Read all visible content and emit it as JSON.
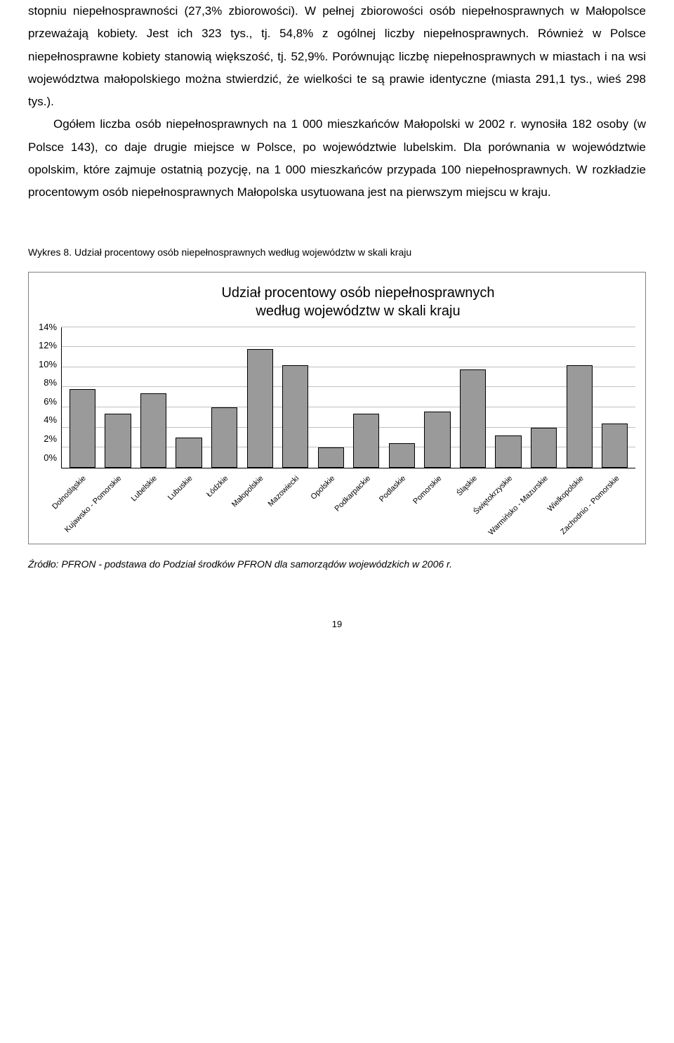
{
  "body_text": "stopniu niepełnosprawności (27,3% zbiorowości). W pełnej zbiorowości osób niepełnosprawnych w Małopolsce przeważają kobiety. Jest ich 323 tys., tj. 54,8% z ogólnej liczby niepełnosprawnych. Również w Polsce niepełnosprawne kobiety stanowią większość, tj. 52,9%. Porównując liczbę niepełnosprawnych w miastach i na wsi województwa małopolskiego można stwierdzić, że wielkości te są prawie identyczne (miasta 291,1 tys., wieś 298 tys.).\n\nOgółem liczba osób niepełnosprawnych na 1 000 mieszkańców Małopolski w 2002 r. wynosiła 182 osoby (w Polsce 143), co daje drugie miejsce w Polsce, po województwie lubelskim. Dla porównania w województwie opolskim, które zajmuje ostatnią pozycję, na 1 000 mieszkańców przypada 100 niepełnosprawnych. W rozkładzie procentowym osób niepełnosprawnych Małopolska usytuowana jest na pierwszym miejscu w kraju.",
  "chart": {
    "caption": "Wykres 8. Udział procentowy osób niepełnosprawnych według województw w skali kraju",
    "title_line1": "Udział procentowy osób niepełnosprawnych",
    "title_line2": "według województw w skali kraju",
    "type": "bar",
    "y_ticks": [
      "14%",
      "12%",
      "10%",
      "8%",
      "6%",
      "4%",
      "2%",
      "0%"
    ],
    "y_max": 14,
    "y_step": 2,
    "bar_color": "#9a9a9a",
    "bar_border": "#000000",
    "grid_color": "#c0c0c0",
    "categories": [
      "Dolnośląskie",
      "Kujawsko - Pomorskie",
      "Lubelskie",
      "Lubuskie",
      "Łódzkie",
      "Małopolskie",
      "Mazowiecki",
      "Opolskie",
      "Podkarpackie",
      "Podlaskie",
      "Pomorskie",
      "Śląskie",
      "Świętokrzyskie",
      "Warmińsko - Mazurskie",
      "Wielkopolskie",
      "Zachodnio - Pomorskie"
    ],
    "values": [
      7.8,
      5.4,
      7.4,
      3.0,
      6.0,
      11.8,
      10.2,
      2.0,
      5.4,
      2.4,
      5.6,
      9.8,
      3.2,
      4.0,
      10.2,
      4.4
    ]
  },
  "source": "Źródło: PFRON - podstawa do Podział środków PFRON dla samorządów wojewódzkich w 2006 r.",
  "page_number": "19"
}
